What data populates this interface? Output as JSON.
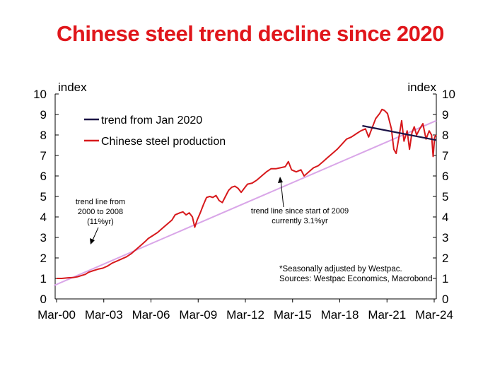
{
  "title": "Chinese steel trend decline since 2020",
  "colors": {
    "title": "#e0161b",
    "production": "#d7191c",
    "trend_2020": "#1b1346",
    "trend_long": "#d9a6e8",
    "axis": "#000000"
  },
  "chart_data": {
    "type": "line",
    "title": "Chinese steel trend decline since 2020",
    "ylabel_left": "index",
    "ylabel_right": "index",
    "ylim": [
      0,
      10
    ],
    "y_ticks": [
      0,
      1,
      2,
      3,
      4,
      5,
      6,
      7,
      8,
      9,
      10
    ],
    "x_ticks": [
      {
        "label": "Mar-00",
        "t": 2000.167
      },
      {
        "label": "Mar-03",
        "t": 2003.167
      },
      {
        "label": "Mar-06",
        "t": 2006.167
      },
      {
        "label": "Mar-09",
        "t": 2009.167
      },
      {
        "label": "Mar-12",
        "t": 2012.167
      },
      {
        "label": "Mar-15",
        "t": 2015.167
      },
      {
        "label": "Mar-18",
        "t": 2018.167
      },
      {
        "label": "Mar-21",
        "t": 2021.167
      },
      {
        "label": "Mar-24",
        "t": 2024.167
      }
    ],
    "grid": false,
    "legend_position": "top-left",
    "series": [
      {
        "name": "trend from Jan 2020",
        "points": [
          [
            2019.6,
            8.45
          ],
          [
            2024.3,
            7.75
          ]
        ]
      },
      {
        "name": "Chinese steel production",
        "points": [
          [
            2000.17,
            1.0
          ],
          [
            2000.5,
            1.0
          ],
          [
            2000.9,
            1.03
          ],
          [
            2001.2,
            1.04
          ],
          [
            2001.5,
            1.08
          ],
          [
            2001.8,
            1.15
          ],
          [
            2002.0,
            1.2
          ],
          [
            2002.2,
            1.3
          ],
          [
            2002.5,
            1.38
          ],
          [
            2002.8,
            1.45
          ],
          [
            2003.1,
            1.5
          ],
          [
            2003.4,
            1.6
          ],
          [
            2003.7,
            1.75
          ],
          [
            2004.0,
            1.85
          ],
          [
            2004.3,
            1.95
          ],
          [
            2004.6,
            2.05
          ],
          [
            2004.9,
            2.2
          ],
          [
            2005.2,
            2.4
          ],
          [
            2005.5,
            2.6
          ],
          [
            2005.8,
            2.8
          ],
          [
            2006.0,
            2.95
          ],
          [
            2006.3,
            3.1
          ],
          [
            2006.6,
            3.25
          ],
          [
            2006.9,
            3.45
          ],
          [
            2007.2,
            3.65
          ],
          [
            2007.5,
            3.85
          ],
          [
            2007.7,
            4.1
          ],
          [
            2008.0,
            4.2
          ],
          [
            2008.2,
            4.25
          ],
          [
            2008.4,
            4.1
          ],
          [
            2008.6,
            4.2
          ],
          [
            2008.8,
            4.0
          ],
          [
            2008.95,
            3.5
          ],
          [
            2009.1,
            3.85
          ],
          [
            2009.3,
            4.2
          ],
          [
            2009.5,
            4.6
          ],
          [
            2009.7,
            4.95
          ],
          [
            2009.9,
            5.0
          ],
          [
            2010.1,
            4.95
          ],
          [
            2010.3,
            5.05
          ],
          [
            2010.5,
            4.8
          ],
          [
            2010.7,
            4.7
          ],
          [
            2010.9,
            5.0
          ],
          [
            2011.1,
            5.3
          ],
          [
            2011.3,
            5.45
          ],
          [
            2011.5,
            5.5
          ],
          [
            2011.7,
            5.4
          ],
          [
            2011.9,
            5.2
          ],
          [
            2012.1,
            5.4
          ],
          [
            2012.3,
            5.6
          ],
          [
            2012.6,
            5.65
          ],
          [
            2012.9,
            5.8
          ],
          [
            2013.2,
            6.0
          ],
          [
            2013.5,
            6.2
          ],
          [
            2013.8,
            6.35
          ],
          [
            2014.1,
            6.35
          ],
          [
            2014.4,
            6.4
          ],
          [
            2014.7,
            6.45
          ],
          [
            2014.9,
            6.7
          ],
          [
            2015.1,
            6.3
          ],
          [
            2015.4,
            6.2
          ],
          [
            2015.7,
            6.3
          ],
          [
            2015.9,
            6.0
          ],
          [
            2016.2,
            6.2
          ],
          [
            2016.5,
            6.4
          ],
          [
            2016.8,
            6.5
          ],
          [
            2017.1,
            6.7
          ],
          [
            2017.4,
            6.9
          ],
          [
            2017.7,
            7.1
          ],
          [
            2018.0,
            7.3
          ],
          [
            2018.3,
            7.55
          ],
          [
            2018.6,
            7.8
          ],
          [
            2018.9,
            7.9
          ],
          [
            2019.2,
            8.05
          ],
          [
            2019.5,
            8.2
          ],
          [
            2019.8,
            8.3
          ],
          [
            2020.0,
            7.9
          ],
          [
            2020.2,
            8.3
          ],
          [
            2020.45,
            8.8
          ],
          [
            2020.7,
            9.05
          ],
          [
            2020.85,
            9.25
          ],
          [
            2021.0,
            9.2
          ],
          [
            2021.2,
            9.05
          ],
          [
            2021.45,
            8.3
          ],
          [
            2021.6,
            7.3
          ],
          [
            2021.75,
            7.1
          ],
          [
            2021.95,
            8.0
          ],
          [
            2022.1,
            8.7
          ],
          [
            2022.25,
            7.7
          ],
          [
            2022.45,
            8.2
          ],
          [
            2022.6,
            7.3
          ],
          [
            2022.75,
            8.1
          ],
          [
            2022.9,
            8.4
          ],
          [
            2023.05,
            8.0
          ],
          [
            2023.25,
            8.3
          ],
          [
            2023.45,
            8.55
          ],
          [
            2023.65,
            7.8
          ],
          [
            2023.85,
            8.2
          ],
          [
            2024.0,
            8.0
          ],
          [
            2024.1,
            6.95
          ],
          [
            2024.2,
            7.9
          ],
          [
            2024.3,
            8.0
          ]
        ]
      },
      {
        "name": "trend line since start of 2009",
        "points": [
          [
            2000.0,
            0.65
          ],
          [
            2024.3,
            8.7
          ]
        ]
      }
    ],
    "annotations": {
      "trend_2000": [
        "trend line from",
        "2000 to 2008",
        "(11%yr)"
      ],
      "trend_2009": [
        "trend line since start of 2009",
        "currently 3.1%yr"
      ],
      "note": [
        "*Seasonally adjusted by Westpac.",
        "Sources: Westpac Economics, Macrobond"
      ]
    }
  }
}
